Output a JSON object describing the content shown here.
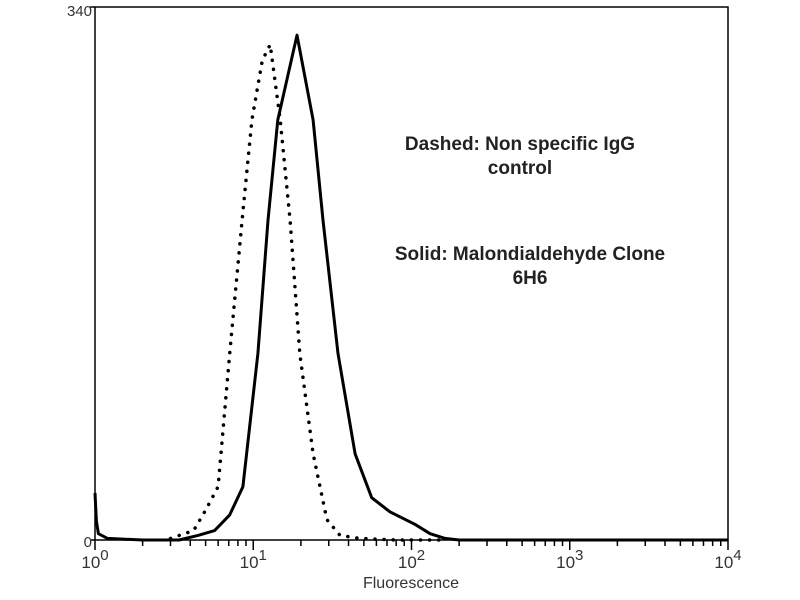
{
  "chart_data": {
    "type": "line",
    "title": "",
    "xlabel": "Fluorescence",
    "ylabel": "",
    "xscale": "log",
    "xlim": [
      1,
      10000
    ],
    "ylim": [
      0,
      340
    ],
    "x_tick_labels": [
      {
        "base": "10",
        "exp": "0"
      },
      {
        "base": "10",
        "exp": "1"
      },
      {
        "base": "10",
        "exp": "2"
      },
      {
        "base": "10",
        "exp": "3"
      },
      {
        "base": "10",
        "exp": "4"
      }
    ],
    "y_tick_labels": [
      "0",
      "340"
    ],
    "grid": false,
    "annotations": [
      {
        "lines": [
          "Dashed: Non specific IgG",
          "control"
        ]
      },
      {
        "lines": [
          "Solid: Malondialdehyde Clone",
          "6H6"
        ]
      }
    ],
    "series": [
      {
        "style": "solid",
        "color": "#000000",
        "x": [
          1.0,
          1.02,
          1.05,
          1.2,
          2,
          3.4,
          4.5,
          5.7,
          7.1,
          8.6,
          10.7,
          12.4,
          14.3,
          18.9,
          23.9,
          27.6,
          34.3,
          44,
          56,
          73,
          105,
          131,
          163,
          200,
          10000
        ],
        "y": [
          30,
          12,
          4,
          1,
          0,
          0,
          3,
          6,
          16,
          34,
          119,
          204,
          268,
          322,
          268,
          204,
          119,
          55,
          27,
          18,
          10,
          4,
          1,
          0,
          0
        ]
      },
      {
        "style": "dotted",
        "color": "#000000",
        "x": [
          3.0,
          4.2,
          5.0,
          6.0,
          7.1,
          8.5,
          9.8,
          11.4,
          12.8,
          14.8,
          17.1,
          19.7,
          23.9,
          29.2,
          35.3,
          47,
          80,
          150
        ],
        "y": [
          1,
          6,
          19,
          34,
          119,
          204,
          268,
          306,
          316,
          268,
          204,
          119,
          55,
          13,
          3,
          1,
          0,
          0
        ]
      }
    ]
  }
}
